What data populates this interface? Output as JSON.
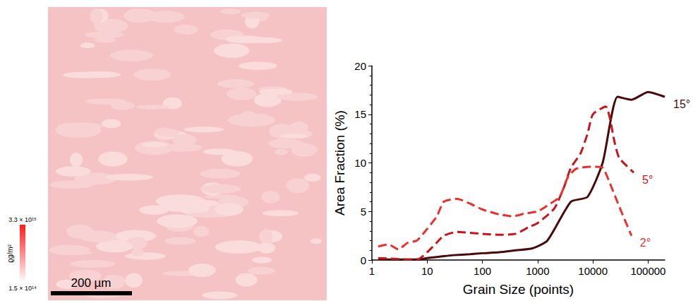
{
  "map": {
    "colorbar": {
      "label": "ϱg/m²",
      "range": [
        150000000000000.0,
        3300000000000000.0
      ],
      "ticks": [
        {
          "value": 3300000000000000.0,
          "label": "3.3 × 10¹⁵"
        },
        {
          "value": 150000000000000.0,
          "label": "1.5 × 10¹⁴"
        }
      ],
      "colors": [
        "#ffffff",
        "#ff1a1a"
      ]
    },
    "scale_bar": "200 µm"
  },
  "chart_data": {
    "type": "line",
    "x_label": "Grain Size (points)",
    "y_label": "Area Fraction (%)",
    "log": "x",
    "xlim": [
      1,
      200000
    ],
    "xticks": [
      1,
      10,
      100,
      1000,
      10000,
      100000
    ],
    "ylim": [
      0,
      20
    ],
    "yticks": [
      0,
      5,
      10,
      15,
      20
    ],
    "grid": false,
    "series": [
      {
        "name": "15°",
        "color": "#4a0808",
        "line_style": "solid",
        "x": [
          1.3,
          3,
          7,
          10,
          20,
          30,
          60,
          100,
          200,
          400,
          800,
          1500,
          4000,
          8000,
          15000,
          28000,
          50000,
          100000,
          200000
        ],
        "values": [
          0.1,
          0.05,
          0.05,
          0.2,
          0.4,
          0.5,
          0.6,
          0.7,
          0.8,
          1.0,
          1.2,
          2.0,
          6.0,
          6.5,
          10.0,
          16.8,
          16.5,
          17.3,
          16.8
        ]
      },
      {
        "name": "5°",
        "color": "#c8161c",
        "line_style": "dashed",
        "x": [
          1.3,
          2,
          3,
          5,
          7,
          10,
          15,
          20,
          35,
          60,
          100,
          200,
          400,
          700,
          1000,
          2000,
          3000,
          4000,
          6000,
          8000,
          10000,
          17000,
          25000,
          30000,
          55000
        ],
        "values": [
          0.2,
          0.15,
          0.1,
          0.05,
          0.1,
          0.8,
          1.8,
          2.5,
          2.9,
          2.8,
          2.7,
          2.6,
          2.7,
          3.4,
          3.8,
          5.3,
          7.5,
          9.5,
          11.0,
          13.0,
          15.0,
          15.8,
          12.0,
          10.5,
          9.0
        ]
      },
      {
        "name": "2°",
        "color": "#e8322e",
        "line_style": "dashed",
        "x": [
          1.3,
          2,
          3,
          4.5,
          6.5,
          10,
          15,
          20,
          35,
          60,
          100,
          200,
          350,
          600,
          1000,
          1500,
          2500,
          3500,
          5000,
          10000,
          15000,
          20000,
          30000,
          50000
        ],
        "values": [
          1.4,
          1.6,
          1.1,
          1.8,
          2.0,
          3.2,
          4.5,
          6.0,
          6.3,
          5.8,
          5.2,
          4.7,
          4.5,
          4.8,
          5.0,
          5.6,
          6.5,
          8.5,
          9.4,
          9.6,
          9.5,
          8.0,
          5.5,
          2.5
        ]
      }
    ]
  }
}
